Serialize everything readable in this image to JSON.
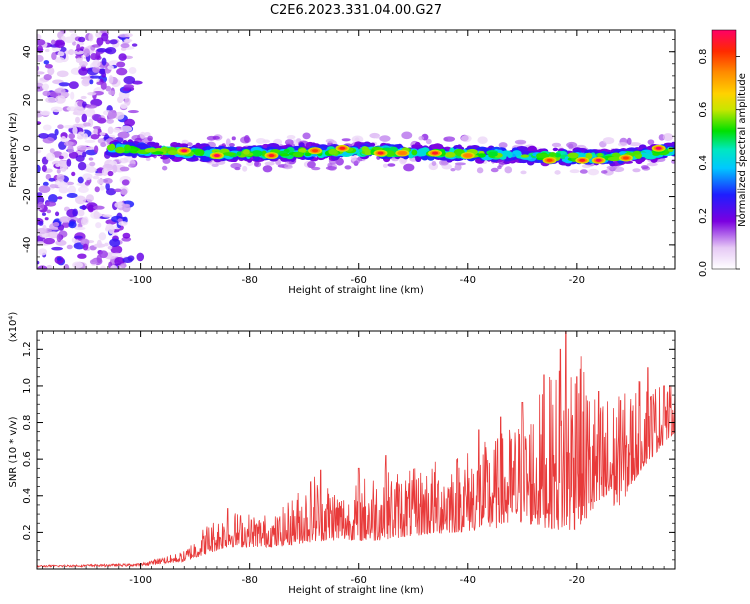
{
  "figure": {
    "title": "C2E6.2023.331.04.00.G27"
  },
  "chart_data": [
    {
      "id": "spectrogram",
      "type": "heatmap",
      "xlabel": "Height of straight line (km)",
      "ylabel": "Frequency (Hz)",
      "xlim": [
        -119,
        -2
      ],
      "ylim": [
        -50,
        49
      ],
      "xticks": [
        -100,
        -80,
        -60,
        -40,
        -20
      ],
      "xtick_labels": [
        "-100",
        "-80",
        "-60",
        "-40",
        "-20"
      ],
      "yticks": [
        -40,
        -20,
        0,
        20,
        40
      ],
      "ytick_labels": [
        "-40",
        "-20",
        "0",
        "20",
        "40"
      ],
      "grid": false,
      "band": {
        "description_values": "main echo band",
        "x_start": -106,
        "x_end": -2,
        "center_freq": [
          {
            "x": -105,
            "y": 0
          },
          {
            "x": -90,
            "y": -2
          },
          {
            "x": -75,
            "y": -2
          },
          {
            "x": -60,
            "y": -1
          },
          {
            "x": -45,
            "y": -2
          },
          {
            "x": -30,
            "y": -3
          },
          {
            "x": -15,
            "y": -4
          },
          {
            "x": -2,
            "y": -1
          }
        ],
        "half_width": 3
      },
      "noise_region": {
        "x_start": -119,
        "x_end": -102
      },
      "peaks": [
        {
          "x": -92,
          "y": -1,
          "amp": 0.9
        },
        {
          "x": -86,
          "y": -3,
          "amp": 0.9
        },
        {
          "x": -76,
          "y": -3,
          "amp": 0.85
        },
        {
          "x": -68,
          "y": -1,
          "amp": 0.8
        },
        {
          "x": -63,
          "y": 0,
          "amp": 0.85
        },
        {
          "x": -56,
          "y": -2,
          "amp": 0.85
        },
        {
          "x": -52,
          "y": -2,
          "amp": 0.75
        },
        {
          "x": -46,
          "y": -2,
          "amp": 0.85
        },
        {
          "x": -40,
          "y": -3,
          "amp": 0.75
        },
        {
          "x": -25,
          "y": -5,
          "amp": 0.8
        },
        {
          "x": -19,
          "y": -5,
          "amp": 0.85
        },
        {
          "x": -16,
          "y": -5,
          "amp": 0.95
        },
        {
          "x": -11,
          "y": -4,
          "amp": 0.8
        },
        {
          "x": -5,
          "y": 0,
          "amp": 0.95
        }
      ]
    },
    {
      "id": "colorbar",
      "type": "colorbar",
      "label": "Normalized spectral amplitude",
      "range": [
        0,
        0.9
      ],
      "ticks": [
        0,
        0.2,
        0.4,
        0.6,
        0.8
      ],
      "tick_labels": [
        "0.0",
        "0.2",
        "0.4",
        "0.6",
        "0.8"
      ],
      "colormap": [
        {
          "v": 0.0,
          "color": "#ffffff"
        },
        {
          "v": 0.08,
          "color": "#e6c9f5"
        },
        {
          "v": 0.18,
          "color": "#7b00e0"
        },
        {
          "v": 0.28,
          "color": "#1e1eff"
        },
        {
          "v": 0.38,
          "color": "#00c8ff"
        },
        {
          "v": 0.45,
          "color": "#00e8c0"
        },
        {
          "v": 0.52,
          "color": "#00e000"
        },
        {
          "v": 0.6,
          "color": "#c8e600"
        },
        {
          "v": 0.66,
          "color": "#ffd200"
        },
        {
          "v": 0.74,
          "color": "#ff8c00"
        },
        {
          "v": 0.82,
          "color": "#ff2a00"
        },
        {
          "v": 0.9,
          "color": "#ff0066"
        }
      ]
    },
    {
      "id": "snr",
      "type": "line",
      "xlabel": "Height of straight line (km)",
      "ylabel": "SNR (10 * v/v)",
      "scale_note": "(x10⁴)",
      "xlim": [
        -119,
        -2
      ],
      "ylim": [
        0,
        1.3
      ],
      "xticks": [
        -100,
        -80,
        -60,
        -40,
        -20
      ],
      "xtick_labels": [
        "-100",
        "-80",
        "-60",
        "-40",
        "-20"
      ],
      "yticks": [
        0.2,
        0.4,
        0.6,
        0.8,
        1.0,
        1.2
      ],
      "ytick_labels": [
        "0.2",
        "0.4",
        "0.6",
        "0.8",
        "1.0",
        "1.2"
      ],
      "grid": false,
      "series": [
        {
          "color": "#e83a3a",
          "envelope": [
            {
              "x": -119,
              "base": 0.01,
              "peak": 0.02
            },
            {
              "x": -100,
              "base": 0.015,
              "peak": 0.03
            },
            {
              "x": -92,
              "base": 0.04,
              "peak": 0.1
            },
            {
              "x": -88,
              "base": 0.08,
              "peak": 0.25
            },
            {
              "x": -84,
              "base": 0.12,
              "peak": 0.32
            },
            {
              "x": -75,
              "base": 0.12,
              "peak": 0.3
            },
            {
              "x": -68,
              "base": 0.15,
              "peak": 0.55
            },
            {
              "x": -62,
              "base": 0.16,
              "peak": 0.42
            },
            {
              "x": -58,
              "base": 0.15,
              "peak": 0.55
            },
            {
              "x": -50,
              "base": 0.18,
              "peak": 0.55
            },
            {
              "x": -42,
              "base": 0.2,
              "peak": 0.65
            },
            {
              "x": -35,
              "base": 0.22,
              "peak": 0.72
            },
            {
              "x": -30,
              "base": 0.25,
              "peak": 0.85
            },
            {
              "x": -25,
              "base": 0.22,
              "peak": 1.05
            },
            {
              "x": -21,
              "base": 0.2,
              "peak": 1.3
            },
            {
              "x": -17,
              "base": 0.3,
              "peak": 1.0
            },
            {
              "x": -12,
              "base": 0.35,
              "peak": 0.95
            },
            {
              "x": -8,
              "base": 0.55,
              "peak": 1.05
            },
            {
              "x": -2,
              "base": 0.75,
              "peak": 1.0
            }
          ],
          "spikes": [
            {
              "x": -84,
              "y": 0.33
            },
            {
              "x": -67,
              "y": 0.54
            },
            {
              "x": -60,
              "y": 0.55
            },
            {
              "x": -55,
              "y": 0.62
            },
            {
              "x": -38,
              "y": 0.76
            },
            {
              "x": -34,
              "y": 0.83
            },
            {
              "x": -30,
              "y": 0.91
            },
            {
              "x": -26,
              "y": 1.06
            },
            {
              "x": -23,
              "y": 1.2
            },
            {
              "x": -22,
              "y": 1.32
            },
            {
              "x": -20,
              "y": 1.05
            },
            {
              "x": -16,
              "y": 0.97
            },
            {
              "x": -12,
              "y": 0.92
            },
            {
              "x": -7,
              "y": 1.1
            },
            {
              "x": -4,
              "y": 1.0
            }
          ]
        }
      ]
    }
  ]
}
